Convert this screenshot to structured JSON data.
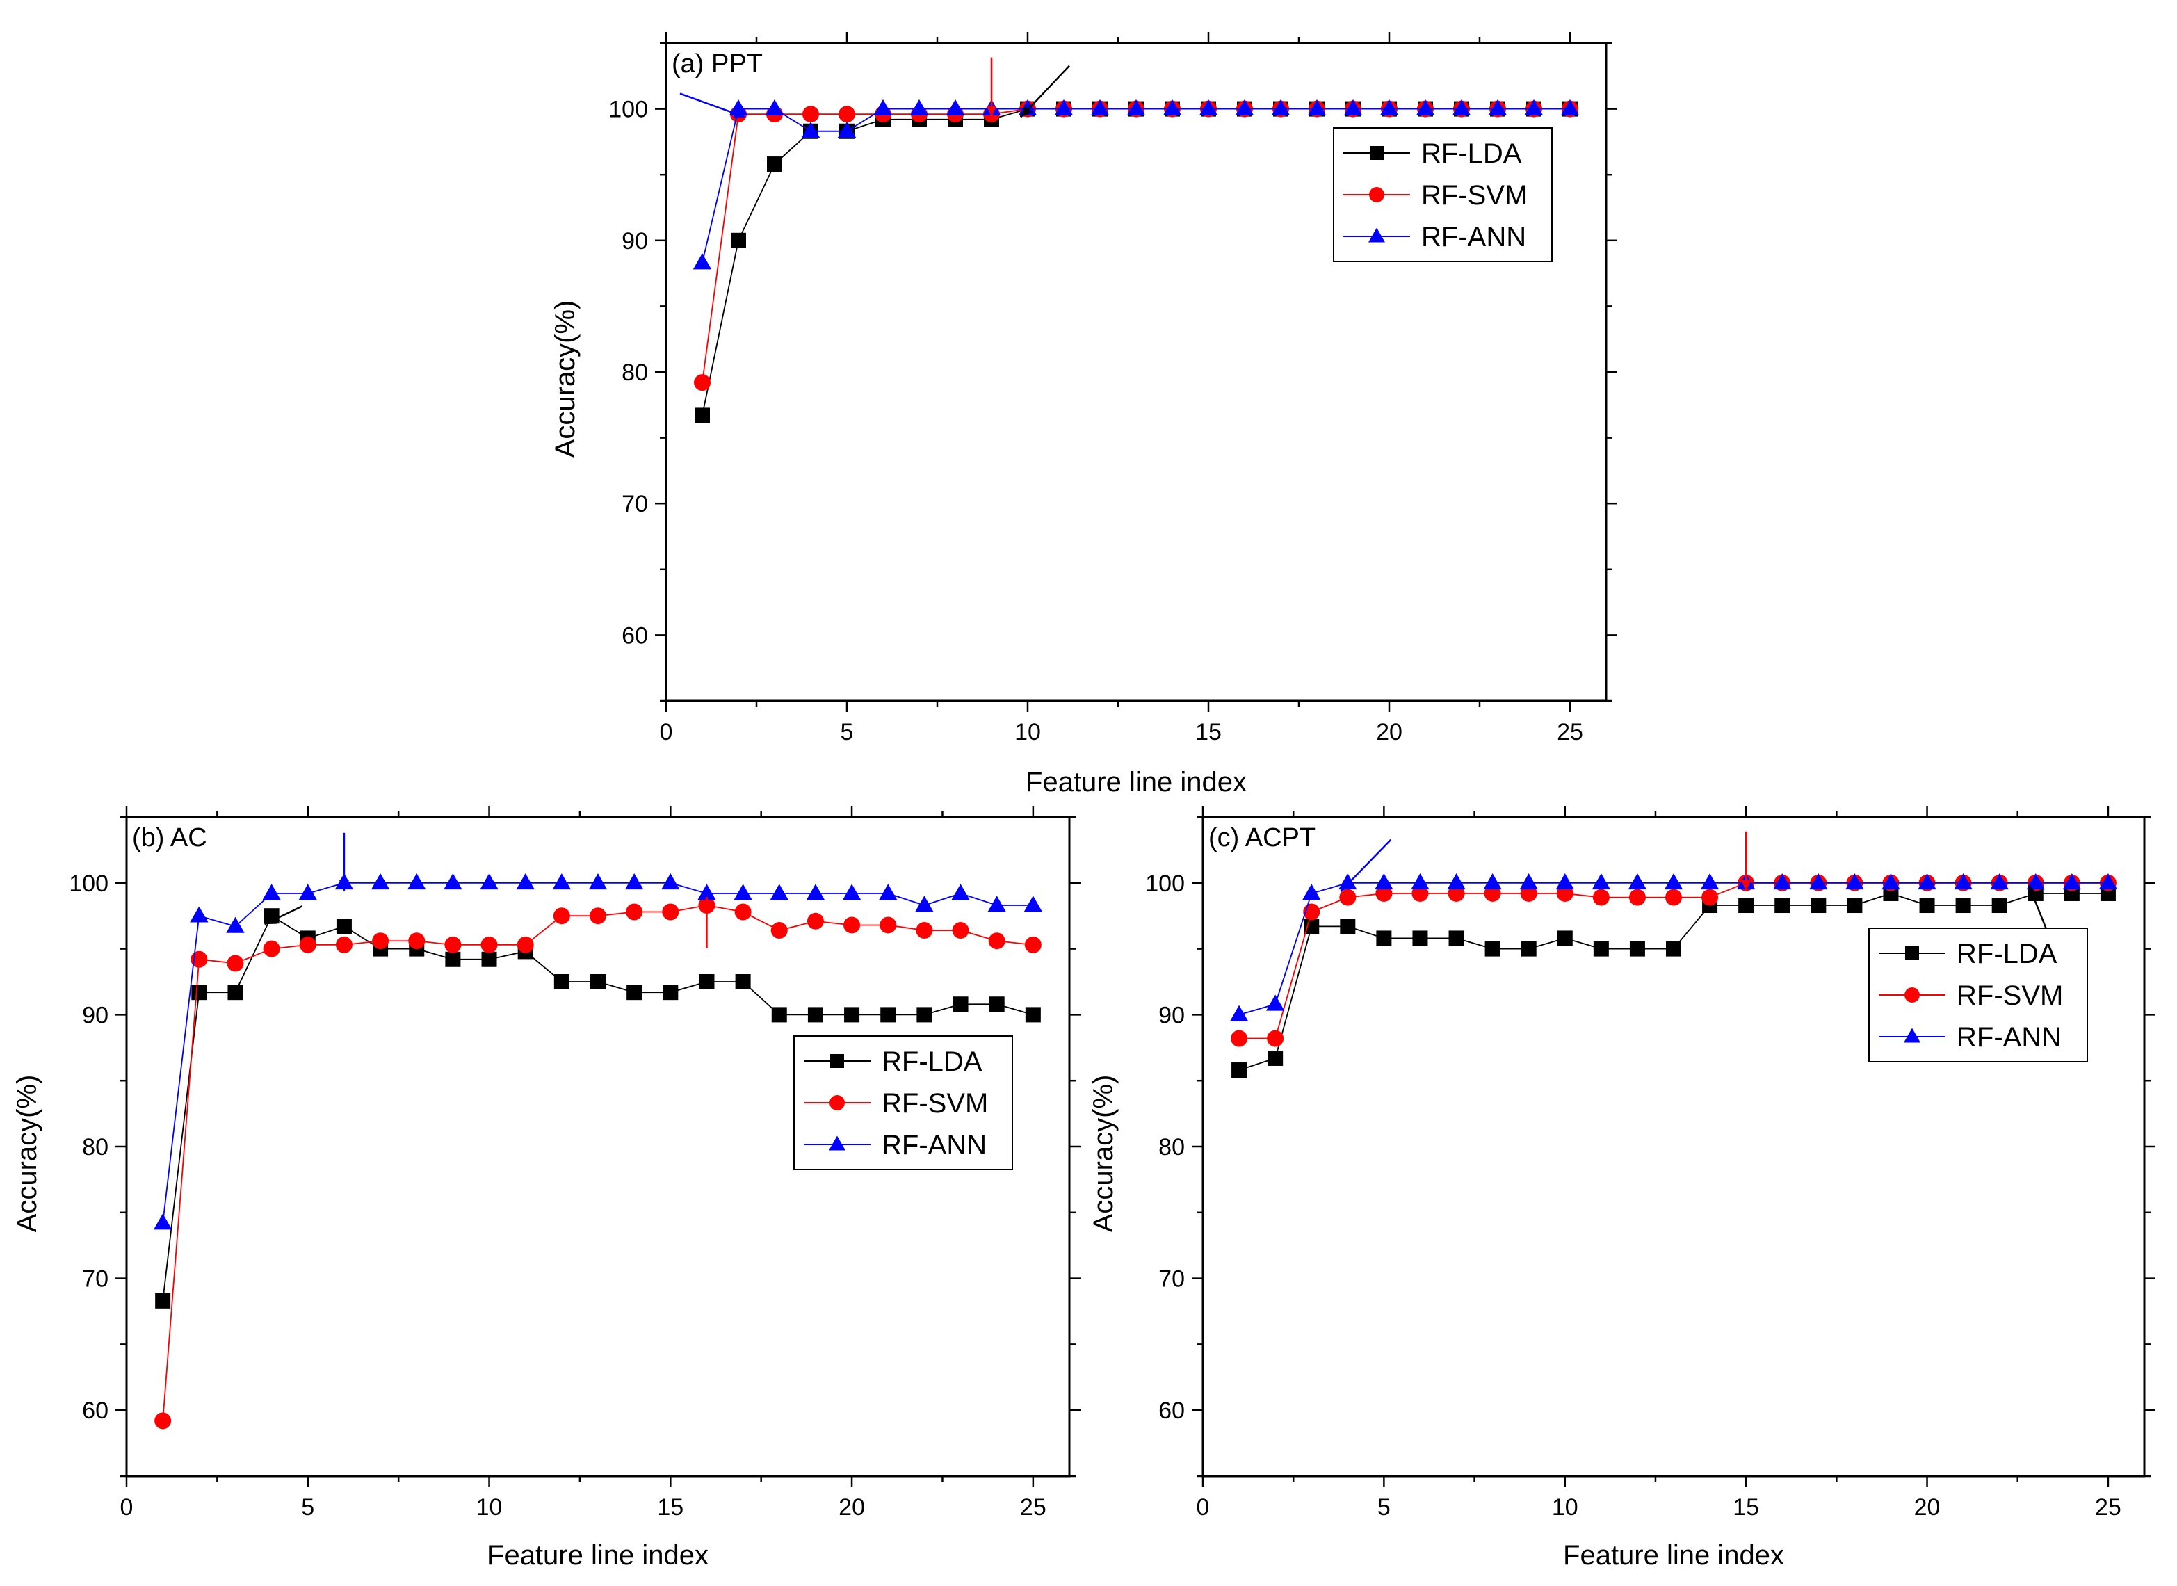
{
  "chart_data": [
    {
      "id": "a",
      "type": "line",
      "title": "(a) PPT",
      "xlabel": "Feature line index",
      "ylabel": "Accuracy(%)",
      "xlim": [
        0,
        26
      ],
      "ylim": [
        55,
        105
      ],
      "xticks": [
        0,
        5,
        10,
        15,
        20,
        25
      ],
      "yticks": [
        60,
        70,
        80,
        90,
        100
      ],
      "legend_position": "top-right",
      "x": [
        1,
        2,
        3,
        4,
        5,
        6,
        7,
        8,
        9,
        10,
        11,
        12,
        13,
        14,
        15,
        16,
        17,
        18,
        19,
        20,
        21,
        22,
        23,
        24,
        25
      ],
      "series": [
        {
          "name": "RF-LDA",
          "color": "#000000",
          "marker": "square",
          "values": [
            76.7,
            90.0,
            95.8,
            98.3,
            98.3,
            99.2,
            99.2,
            99.2,
            99.2,
            100,
            100,
            100,
            100,
            100,
            100,
            100,
            100,
            100,
            100,
            100,
            100,
            100,
            100,
            100,
            100
          ]
        },
        {
          "name": "RF-SVM",
          "color": "#ff0000",
          "marker": "circle",
          "values": [
            79.2,
            99.6,
            99.6,
            99.6,
            99.6,
            99.6,
            99.6,
            99.6,
            99.6,
            100,
            100,
            100,
            100,
            100,
            100,
            100,
            100,
            100,
            100,
            100,
            100,
            100,
            100,
            100,
            100
          ]
        },
        {
          "name": "RF-ANN",
          "color": "#0000ff",
          "marker": "triangle",
          "values": [
            88.3,
            100,
            100,
            98.3,
            98.3,
            100,
            100,
            100,
            100,
            100,
            100,
            100,
            100,
            100,
            100,
            100,
            100,
            100,
            100,
            100,
            100,
            100,
            100,
            100,
            100
          ]
        }
      ],
      "annotations": [
        {
          "type": "arrow",
          "color": "#0000ff",
          "target_x": 2,
          "target_y": 100
        },
        {
          "type": "arrow",
          "color": "#ff0000",
          "target_x": 9,
          "target_y": 100
        },
        {
          "type": "arrow",
          "color": "#000000",
          "target_x": 10,
          "target_y": 100
        }
      ]
    },
    {
      "id": "b",
      "type": "line",
      "title": "(b) AC",
      "xlabel": "Feature line index",
      "ylabel": "Accuracy(%)",
      "xlim": [
        0,
        26
      ],
      "ylim": [
        55,
        105
      ],
      "xticks": [
        0,
        5,
        10,
        15,
        20,
        25
      ],
      "yticks": [
        60,
        70,
        80,
        90,
        100
      ],
      "legend_position": "center-right",
      "x": [
        1,
        2,
        3,
        4,
        5,
        6,
        7,
        8,
        9,
        10,
        11,
        12,
        13,
        14,
        15,
        16,
        17,
        18,
        19,
        20,
        21,
        22,
        23,
        24,
        25
      ],
      "series": [
        {
          "name": "RF-LDA",
          "color": "#000000",
          "marker": "square",
          "values": [
            68.3,
            91.7,
            91.7,
            97.5,
            95.8,
            96.7,
            95.0,
            95.0,
            94.2,
            94.2,
            94.8,
            92.5,
            92.5,
            91.7,
            91.7,
            92.5,
            92.5,
            90.0,
            90.0,
            90.0,
            90.0,
            90.0,
            90.8,
            90.8,
            90.0
          ]
        },
        {
          "name": "RF-SVM",
          "color": "#ff0000",
          "marker": "circle",
          "values": [
            59.2,
            94.2,
            93.9,
            95.0,
            95.3,
            95.3,
            95.6,
            95.6,
            95.3,
            95.3,
            95.3,
            97.5,
            97.5,
            97.8,
            97.8,
            98.3,
            97.8,
            96.4,
            97.1,
            96.8,
            96.8,
            96.4,
            96.4,
            95.6,
            95.3
          ]
        },
        {
          "name": "RF-ANN",
          "color": "#0000ff",
          "marker": "triangle",
          "values": [
            74.2,
            97.5,
            96.7,
            99.2,
            99.2,
            100,
            100,
            100,
            100,
            100,
            100,
            100,
            100,
            100,
            100,
            99.2,
            99.2,
            99.2,
            99.2,
            99.2,
            99.2,
            98.3,
            99.2,
            98.3,
            98.3
          ]
        }
      ],
      "annotations": [
        {
          "type": "arrow",
          "color": "#000000",
          "target_x": 4,
          "target_y": 97.5
        },
        {
          "type": "arrow",
          "color": "#0000ff",
          "target_x": 6,
          "target_y": 100
        },
        {
          "type": "arrow",
          "color": "#ff0000",
          "target_x": 16,
          "target_y": 98.3
        }
      ]
    },
    {
      "id": "c",
      "type": "line",
      "title": "(c) ACPT",
      "xlabel": "Feature line index",
      "ylabel": "Accuracy(%)",
      "xlim": [
        0,
        26
      ],
      "ylim": [
        55,
        105
      ],
      "xticks": [
        0,
        5,
        10,
        15,
        20,
        25
      ],
      "yticks": [
        60,
        70,
        80,
        90,
        100
      ],
      "legend_position": "top-right",
      "x": [
        1,
        2,
        3,
        4,
        5,
        6,
        7,
        8,
        9,
        10,
        11,
        12,
        13,
        14,
        15,
        16,
        17,
        18,
        19,
        20,
        21,
        22,
        23,
        24,
        25
      ],
      "series": [
        {
          "name": "RF-LDA",
          "color": "#000000",
          "marker": "square",
          "values": [
            85.8,
            86.7,
            96.7,
            96.7,
            95.8,
            95.8,
            95.8,
            95.0,
            95.0,
            95.8,
            95.0,
            95.0,
            95.0,
            98.3,
            98.3,
            98.3,
            98.3,
            98.3,
            99.2,
            98.3,
            98.3,
            98.3,
            99.2,
            99.2,
            99.2
          ]
        },
        {
          "name": "RF-SVM",
          "color": "#ff0000",
          "marker": "circle",
          "values": [
            88.2,
            88.2,
            97.8,
            98.9,
            99.2,
            99.2,
            99.2,
            99.2,
            99.2,
            99.2,
            98.9,
            98.9,
            98.9,
            98.9,
            100,
            100,
            100,
            100,
            100,
            100,
            100,
            100,
            100,
            100,
            100
          ]
        },
        {
          "name": "RF-ANN",
          "color": "#0000ff",
          "marker": "triangle",
          "values": [
            90.0,
            90.8,
            99.2,
            100,
            100,
            100,
            100,
            100,
            100,
            100,
            100,
            100,
            100,
            100,
            100,
            100,
            100,
            100,
            100,
            100,
            100,
            100,
            100,
            100,
            100
          ]
        }
      ],
      "annotations": [
        {
          "type": "arrow",
          "color": "#0000ff",
          "target_x": 4,
          "target_y": 100
        },
        {
          "type": "arrow",
          "color": "#ff0000",
          "target_x": 15,
          "target_y": 100
        },
        {
          "type": "arrow",
          "color": "#000000",
          "target_x": 23,
          "target_y": 99.2
        }
      ]
    }
  ]
}
